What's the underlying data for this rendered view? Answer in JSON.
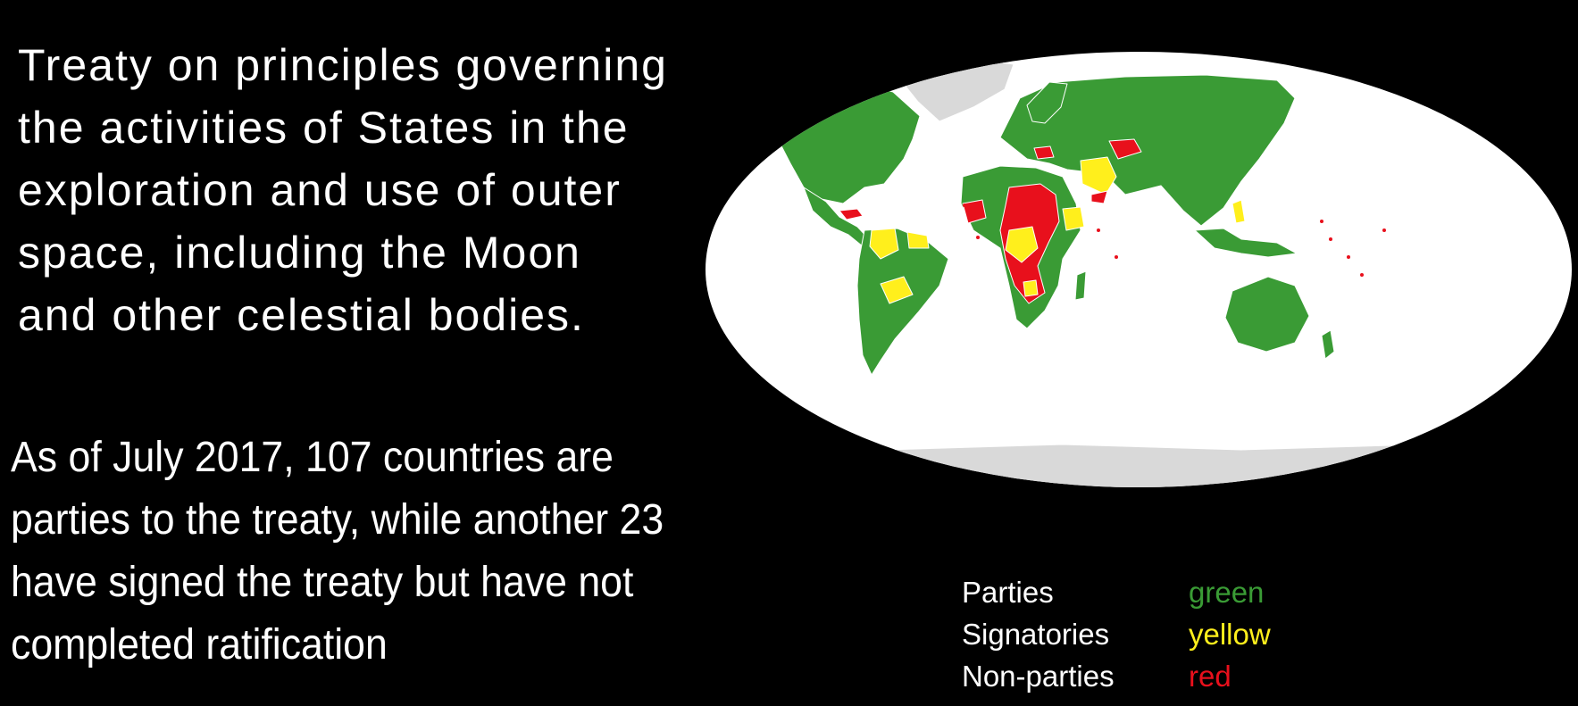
{
  "title_lines": [
    "Treaty on principles governing",
    "the activities of States in the",
    "exploration and use of outer",
    "space, including the Moon",
    "and other celestial bodies."
  ],
  "stat_lines": [
    "As of July 2017, 107 countries are",
    "parties to the treaty, while another 23",
    "have signed the treaty but have not",
    "completed ratification"
  ],
  "map": {
    "ocean_color": "#ffffff",
    "no_data_color": "#d9d9d9",
    "border_color": "#ffffff"
  },
  "legend": [
    {
      "label": "Parties",
      "value": "green",
      "color": "#3a9b35"
    },
    {
      "label": "Signatories",
      "value": "yellow",
      "color": "#ffef1c"
    },
    {
      "label": "Non-parties",
      "value": "red",
      "color": "#e8101c"
    }
  ]
}
